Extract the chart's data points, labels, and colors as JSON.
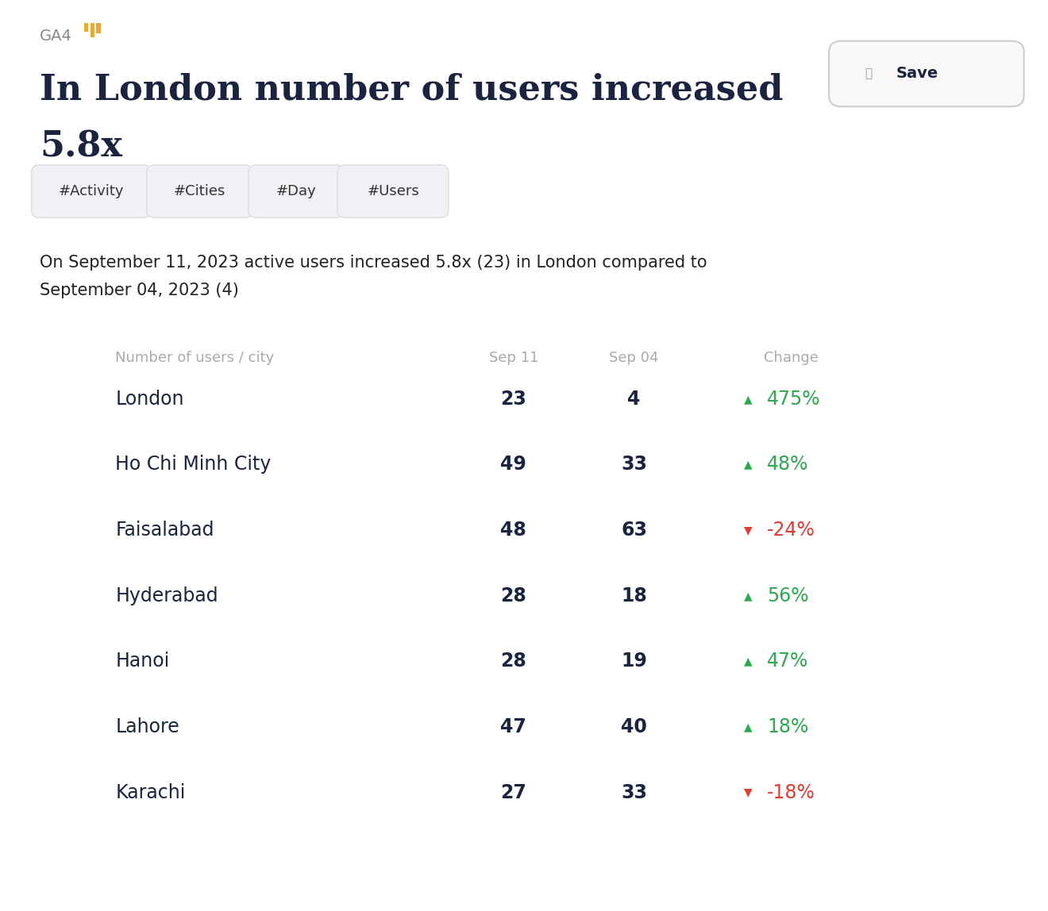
{
  "background_color": "#ffffff",
  "ga4_label": "GA4",
  "title_line1": "In London number of users increased",
  "title_line2": "5.8x",
  "title_color": "#1a2440",
  "save_button_text": "Save",
  "tags": [
    "#Activity",
    "#Cities",
    "#Day",
    "#Users"
  ],
  "tag_bg_color": "#f0f0f5",
  "tag_border_color": "#dddddd",
  "tag_text_color": "#333333",
  "description_line1": "On September 11, 2023 active users increased 5.8x (23) in London compared to",
  "description_line2": "September 04, 2023 (4)",
  "description_color": "#222222",
  "col_header_city": "Number of users / city",
  "col_header_sep11": "Sep 11",
  "col_header_sep04": "Sep 04",
  "col_header_change": "Change",
  "col_header_color": "#aaaaaa",
  "rows": [
    {
      "city": "London",
      "sep11": "23",
      "sep04": "4",
      "change": "475%",
      "direction": 1
    },
    {
      "city": "Ho Chi Minh City",
      "sep11": "49",
      "sep04": "33",
      "change": "48%",
      "direction": 1
    },
    {
      "city": "Faisalabad",
      "sep11": "48",
      "sep04": "63",
      "change": "-24%",
      "direction": -1
    },
    {
      "city": "Hyderabad",
      "sep11": "28",
      "sep04": "18",
      "change": "56%",
      "direction": 1
    },
    {
      "city": "Hanoi",
      "sep11": "28",
      "sep04": "19",
      "change": "47%",
      "direction": 1
    },
    {
      "city": "Lahore",
      "sep11": "47",
      "sep04": "40",
      "change": "18%",
      "direction": 1
    },
    {
      "city": "Karachi",
      "sep11": "27",
      "sep04": "33",
      "change": "-18%",
      "direction": -1
    }
  ],
  "city_color": "#1a2440",
  "value_color": "#1a2440",
  "positive_color": "#2ea84f",
  "negative_color": "#e03c31",
  "icon_bar_color": "#e8a838"
}
